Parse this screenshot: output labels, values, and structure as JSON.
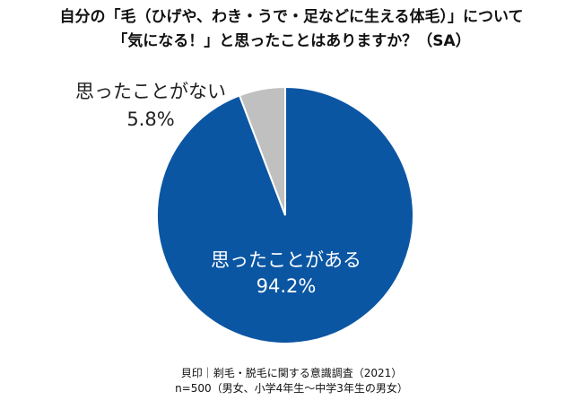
{
  "title_lines": [
    "自分の「毛（ひげや、わき・うで・足などに生える体毛）」について",
    "「気になる！」と思ったことはありますか？（SA）"
  ],
  "chart_data": {
    "type": "pie",
    "slices": [
      {
        "label": "思ったことがある",
        "value": 94.2,
        "value_label": "94.2%",
        "color": "#0b56a3"
      },
      {
        "label": "思ったことがない",
        "value": 5.8,
        "value_label": "5.8%",
        "color": "#c0c0c0"
      }
    ],
    "start": "top",
    "direction": "clockwise"
  },
  "footer_lines": [
    "貝印｜剃毛・脱毛に関する意識調査（2021）",
    "n=500（男女、小学4年生～中学3年生の男女）"
  ]
}
